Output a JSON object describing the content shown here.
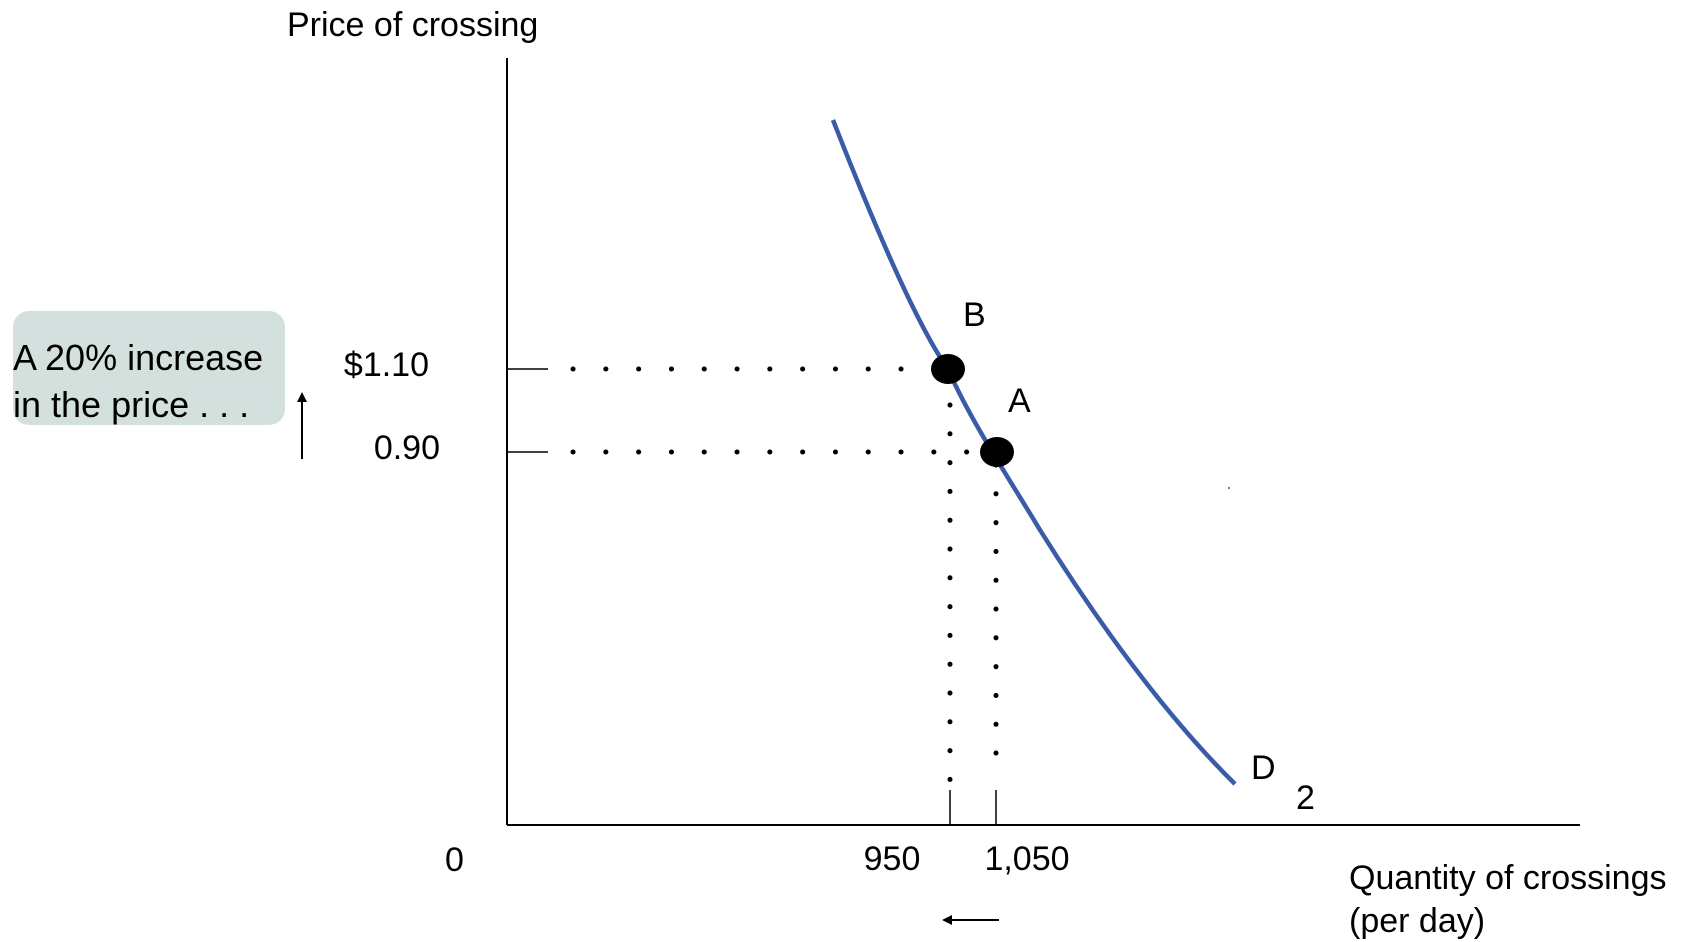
{
  "chart_data": {
    "type": "line",
    "title": "",
    "xlabel": "Quantity of crossings",
    "xlabel_sub": "(per day)",
    "ylabel": "Price of crossing",
    "origin_label": "0",
    "x_tick_labels": [
      "950",
      "1,050"
    ],
    "y_tick_labels": [
      "$1.10",
      "0.90"
    ],
    "series": [
      {
        "name": "D",
        "subscript": "2",
        "color": "#3a5ba8",
        "points": [
          {
            "x": 750,
            "y": 1.7
          },
          {
            "x": 850,
            "y": 1.4
          },
          {
            "x": 950,
            "y": 1.1
          },
          {
            "x": 1050,
            "y": 0.9
          },
          {
            "x": 1150,
            "y": 0.7
          },
          {
            "x": 1300,
            "y": 0.45
          },
          {
            "x": 1480,
            "y": 0.22
          }
        ]
      }
    ],
    "points": [
      {
        "label": "A",
        "x": 1050,
        "y": 0.9
      },
      {
        "label": "B",
        "x": 950,
        "y": 1.1
      }
    ],
    "annotation": {
      "line1": "A 20% increase",
      "line2": "in the price . . ."
    },
    "xlim": [
      0,
      2300
    ],
    "ylim": [
      0,
      1.95
    ],
    "grid": false
  }
}
